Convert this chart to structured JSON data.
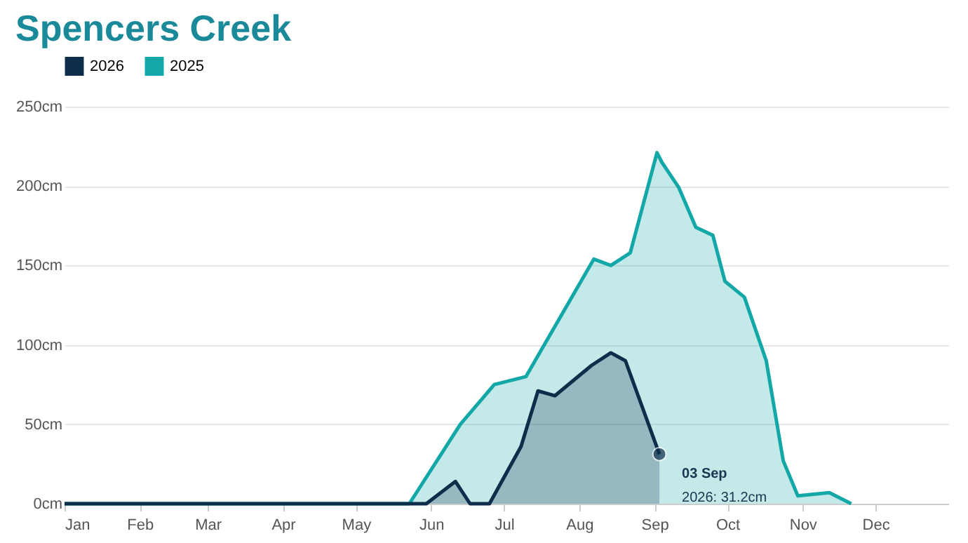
{
  "chart_data": {
    "type": "area",
    "title": "Spencers Creek",
    "series": [
      {
        "name": "2026",
        "color": "#0d2d4a",
        "x": [
          "--01-01",
          "--05-30",
          "--06-11",
          "--06-17",
          "--06-25",
          "--07-08",
          "--07-15",
          "--07-22",
          "--08-06",
          "--08-14",
          "--08-20",
          "--09-03"
        ],
        "values": [
          0,
          0,
          14,
          0,
          0,
          36,
          71,
          68,
          87,
          95,
          90,
          31.2
        ]
      },
      {
        "name": "2025",
        "color": "#13a7a7",
        "x": [
          "--01-01",
          "--05-23",
          "--06-13",
          "--06-27",
          "--07-10",
          "--08-07",
          "--08-14",
          "--08-22",
          "--09-02",
          "--09-04",
          "--09-11",
          "--09-18",
          "--09-25",
          "--09-30",
          "--10-08",
          "--10-17",
          "--10-24",
          "--10-30",
          "--11-12",
          "--11-21"
        ],
        "values": [
          0,
          0,
          50,
          75,
          80,
          154,
          150,
          158,
          221,
          215,
          199,
          174,
          169,
          140,
          130,
          90,
          27,
          5,
          7,
          0
        ]
      }
    ],
    "xlim": [
      "--01-01",
      "--12-31"
    ],
    "xticks": [
      {
        "value": "--01-01",
        "label": "Jan"
      },
      {
        "value": "--02-01",
        "label": "Feb"
      },
      {
        "value": "--03-01",
        "label": "Mar"
      },
      {
        "value": "--04-01",
        "label": "Apr"
      },
      {
        "value": "--05-01",
        "label": "May"
      },
      {
        "value": "--06-01",
        "label": "Jun"
      },
      {
        "value": "--07-01",
        "label": "Jul"
      },
      {
        "value": "--08-01",
        "label": "Aug"
      },
      {
        "value": "--09-01",
        "label": "Sep"
      },
      {
        "value": "--10-01",
        "label": "Oct"
      },
      {
        "value": "--11-01",
        "label": "Nov"
      },
      {
        "value": "--12-01",
        "label": "Dec"
      }
    ],
    "ylim": [
      0,
      250
    ],
    "yticks": [
      {
        "value": 0,
        "label": "0cm"
      },
      {
        "value": 50,
        "label": "50cm"
      },
      {
        "value": 100,
        "label": "100cm"
      },
      {
        "value": 150,
        "label": "150cm"
      },
      {
        "value": 200,
        "label": "200cm"
      },
      {
        "value": 250,
        "label": "250cm"
      }
    ],
    "grid": "y",
    "legend": "top",
    "marker": "none",
    "annotations": [
      {
        "text": "03 Sep",
        "x": "--09-03",
        "y": 31.2
      },
      {
        "text": "2026: 31.2cm",
        "x": "--09-03",
        "y": 31.2
      }
    ]
  }
}
